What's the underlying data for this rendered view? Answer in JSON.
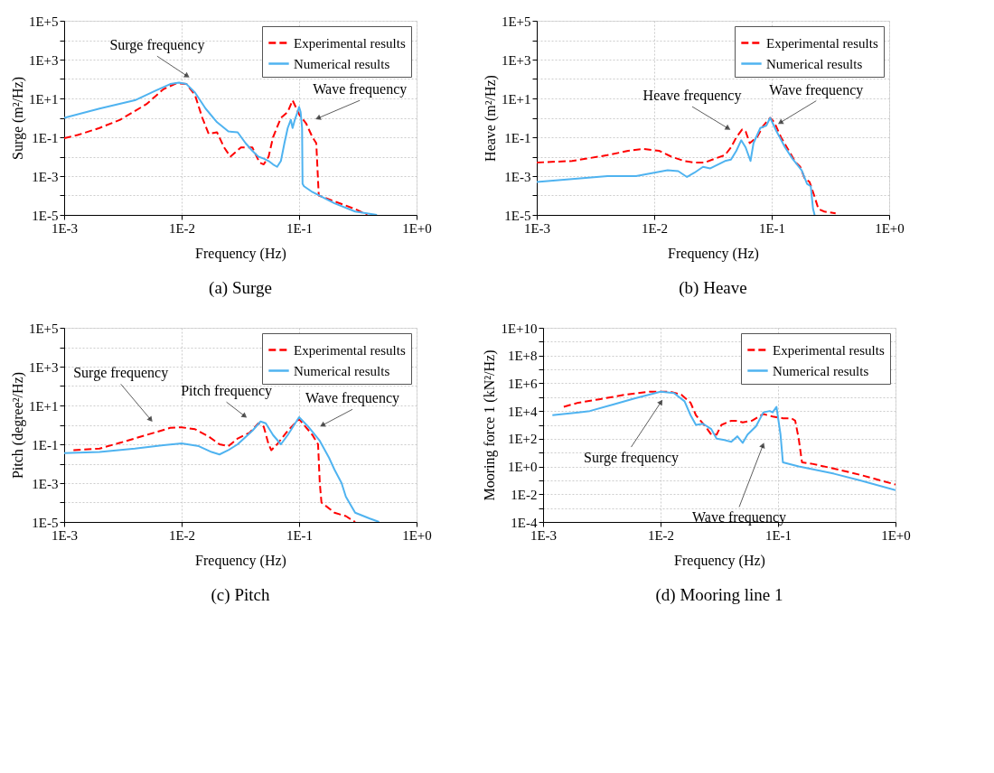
{
  "chart_data": [
    {
      "type": "line",
      "title": "(a) Surge",
      "xlabel": "Frequency (Hz)",
      "ylabel": "Surge (m²/Hz)",
      "log": "xy",
      "grid": true,
      "legend": "top right",
      "xlim": [
        0.001,
        1
      ],
      "ylim": [
        1e-05,
        100000
      ],
      "xticks": [
        {
          "value": 0.001,
          "label": "1E-3"
        },
        {
          "value": 0.01,
          "label": "1E-2"
        },
        {
          "value": 0.1,
          "label": "1E-1"
        },
        {
          "value": 1,
          "label": "1E+0"
        }
      ],
      "yticks": [
        {
          "value": 1e-05,
          "label": "1E-5"
        },
        {
          "value": 0.0001,
          "label": null
        },
        {
          "value": 0.001,
          "label": "1E-3"
        },
        {
          "value": 0.01,
          "label": null
        },
        {
          "value": 0.1,
          "label": "1E-1"
        },
        {
          "value": 1,
          "label": null
        },
        {
          "value": 10,
          "label": "1E+1"
        },
        {
          "value": 100,
          "label": null
        },
        {
          "value": 1000,
          "label": "1E+3"
        },
        {
          "value": 10000,
          "label": null
        },
        {
          "value": 100000,
          "label": "1E+5"
        }
      ],
      "series": [
        {
          "name": "Experimental results",
          "color": "#ff0000",
          "line_style": "dashed",
          "x": [
            0.001,
            0.0013,
            0.002,
            0.003,
            0.005,
            0.007,
            0.009,
            0.011,
            0.013,
            0.015,
            0.017,
            0.02,
            0.023,
            0.026,
            0.032,
            0.04,
            0.046,
            0.05,
            0.055,
            0.06,
            0.07,
            0.08,
            0.088,
            0.095,
            0.1,
            0.115,
            0.13,
            0.14,
            0.147,
            0.2,
            0.3,
            0.38
          ],
          "values": [
            0.09,
            0.13,
            0.3,
            0.8,
            5,
            30,
            60,
            55,
            15,
            1,
            0.15,
            0.18,
            0.03,
            0.01,
            0.03,
            0.03,
            0.005,
            0.004,
            0.01,
            0.1,
            1,
            2,
            8,
            3,
            1.5,
            0.5,
            0.1,
            0.05,
            0.0001,
            5e-05,
            2e-05,
            1e-05
          ]
        },
        {
          "name": "Numerical results",
          "color": "#4fb3f0",
          "line_style": "solid",
          "x": [
            0.001,
            0.002,
            0.004,
            0.006,
            0.008,
            0.0095,
            0.011,
            0.013,
            0.016,
            0.02,
            0.025,
            0.03,
            0.035,
            0.04,
            0.045,
            0.05,
            0.055,
            0.06,
            0.065,
            0.07,
            0.075,
            0.08,
            0.085,
            0.088,
            0.092,
            0.097,
            0.1,
            0.103,
            0.106,
            0.107,
            0.11,
            0.13,
            0.2,
            0.3,
            0.46
          ],
          "values": [
            1,
            3,
            8,
            25,
            55,
            65,
            55,
            20,
            3,
            0.6,
            0.2,
            0.18,
            0.05,
            0.02,
            0.01,
            0.008,
            0.006,
            0.004,
            0.003,
            0.006,
            0.05,
            0.3,
            0.8,
            0.3,
            0.8,
            2,
            3.6,
            2,
            0.3,
            0.0004,
            0.0003,
            0.00015,
            4e-05,
            1.5e-05,
            1e-05
          ]
        }
      ],
      "annotations": [
        {
          "text": "Surge frequency",
          "x": 0.011,
          "y": 150
        },
        {
          "text": "Wave frequency",
          "x": 0.147,
          "y": 1
        }
      ]
    },
    {
      "type": "line",
      "title": "(b) Heave",
      "xlabel": "Frequency (Hz)",
      "ylabel": "Heave (m²/Hz)",
      "log": "xy",
      "grid": true,
      "legend": "top right",
      "xlim": [
        0.001,
        1
      ],
      "ylim": [
        1e-05,
        100000
      ],
      "xticks": [
        {
          "value": 0.001,
          "label": "1E-3"
        },
        {
          "value": 0.01,
          "label": "1E-2"
        },
        {
          "value": 0.1,
          "label": "1E-1"
        },
        {
          "value": 1,
          "label": "1E+0"
        }
      ],
      "yticks": [
        {
          "value": 1e-05,
          "label": "1E-5"
        },
        {
          "value": 0.0001,
          "label": null
        },
        {
          "value": 0.001,
          "label": "1E-3"
        },
        {
          "value": 0.01,
          "label": null
        },
        {
          "value": 0.1,
          "label": "1E-1"
        },
        {
          "value": 1,
          "label": null
        },
        {
          "value": 10,
          "label": "1E+1"
        },
        {
          "value": 100,
          "label": null
        },
        {
          "value": 1000,
          "label": "1E+3"
        },
        {
          "value": 10000,
          "label": null
        },
        {
          "value": 100000,
          "label": "1E+5"
        }
      ],
      "series": [
        {
          "name": "Experimental results",
          "color": "#ff0000",
          "line_style": "dashed",
          "x": [
            0.001,
            0.002,
            0.004,
            0.006,
            0.008,
            0.011,
            0.014,
            0.018,
            0.022,
            0.027,
            0.033,
            0.04,
            0.045,
            0.05,
            0.056,
            0.06,
            0.065,
            0.075,
            0.085,
            0.097,
            0.105,
            0.12,
            0.14,
            0.16,
            0.175,
            0.19,
            0.21,
            0.23,
            0.25,
            0.28,
            0.35
          ],
          "values": [
            0.005,
            0.006,
            0.012,
            0.02,
            0.025,
            0.02,
            0.01,
            0.006,
            0.005,
            0.005,
            0.008,
            0.012,
            0.03,
            0.1,
            0.25,
            0.2,
            0.05,
            0.1,
            0.4,
            1,
            0.6,
            0.1,
            0.02,
            0.005,
            0.003,
            0.0008,
            0.0005,
            0.0001,
            2e-05,
            1.5e-05,
            1.2e-05
          ]
        },
        {
          "name": "Numerical results",
          "color": "#4fb3f0",
          "line_style": "solid",
          "x": [
            0.001,
            0.002,
            0.004,
            0.007,
            0.01,
            0.013,
            0.016,
            0.019,
            0.022,
            0.026,
            0.03,
            0.035,
            0.04,
            0.045,
            0.05,
            0.055,
            0.06,
            0.066,
            0.07,
            0.08,
            0.09,
            0.097,
            0.11,
            0.13,
            0.15,
            0.18,
            0.2,
            0.215,
            0.225,
            0.232
          ],
          "values": [
            0.0005,
            0.0007,
            0.001,
            0.001,
            0.0015,
            0.002,
            0.0018,
            0.0009,
            0.0015,
            0.003,
            0.0025,
            0.004,
            0.006,
            0.007,
            0.02,
            0.07,
            0.03,
            0.006,
            0.05,
            0.3,
            0.4,
            1,
            0.2,
            0.03,
            0.008,
            0.002,
            0.0004,
            0.0003,
            2e-05,
            1e-05
          ]
        }
      ],
      "annotations": [
        {
          "text": "Heave frequency",
          "x": 0.042,
          "y": 0.3
        },
        {
          "text": "Wave frequency",
          "x": 0.12,
          "y": 0.6
        }
      ]
    },
    {
      "type": "line",
      "title": "(c) Pitch",
      "xlabel": "Frequency (Hz)",
      "ylabel": "Pitch (degree²/Hz)",
      "log": "xy",
      "grid": true,
      "legend": "top right",
      "xlim": [
        0.001,
        1
      ],
      "ylim": [
        1e-05,
        100000
      ],
      "xticks": [
        {
          "value": 0.001,
          "label": "1E-3"
        },
        {
          "value": 0.01,
          "label": "1E-2"
        },
        {
          "value": 0.1,
          "label": "1E-1"
        },
        {
          "value": 1,
          "label": "1E+0"
        }
      ],
      "yticks": [
        {
          "value": 1e-05,
          "label": "1E-5"
        },
        {
          "value": 0.0001,
          "label": null
        },
        {
          "value": 0.001,
          "label": "1E-3"
        },
        {
          "value": 0.01,
          "label": null
        },
        {
          "value": 0.1,
          "label": "1E-1"
        },
        {
          "value": 1,
          "label": null
        },
        {
          "value": 10,
          "label": "1E+1"
        },
        {
          "value": 100,
          "label": null
        },
        {
          "value": 1000,
          "label": "1E+3"
        },
        {
          "value": 10000,
          "label": null
        },
        {
          "value": 100000,
          "label": "1E+5"
        }
      ],
      "series": [
        {
          "name": "Experimental results",
          "color": "#ff0000",
          "line_style": "dashed",
          "x": [
            0.0012,
            0.002,
            0.003,
            0.005,
            0.008,
            0.01,
            0.013,
            0.017,
            0.021,
            0.025,
            0.03,
            0.038,
            0.045,
            0.05,
            0.055,
            0.058,
            0.065,
            0.08,
            0.1,
            0.11,
            0.13,
            0.145,
            0.15,
            0.155,
            0.2,
            0.25,
            0.3
          ],
          "values": [
            0.05,
            0.06,
            0.12,
            0.3,
            0.7,
            0.75,
            0.6,
            0.25,
            0.1,
            0.08,
            0.2,
            0.4,
            1.2,
            0.8,
            0.1,
            0.05,
            0.1,
            0.5,
            2,
            1,
            0.3,
            0.1,
            0.001,
            0.0001,
            3e-05,
            2e-05,
            1e-05
          ]
        },
        {
          "name": "Numerical results",
          "color": "#4fb3f0",
          "line_style": "solid",
          "x": [
            0.001,
            0.002,
            0.004,
            0.007,
            0.01,
            0.014,
            0.018,
            0.021,
            0.025,
            0.03,
            0.04,
            0.047,
            0.052,
            0.06,
            0.07,
            0.08,
            0.1,
            0.12,
            0.15,
            0.18,
            0.2,
            0.23,
            0.25,
            0.3,
            0.4,
            0.48
          ],
          "values": [
            0.035,
            0.04,
            0.06,
            0.09,
            0.11,
            0.08,
            0.04,
            0.03,
            0.05,
            0.1,
            0.5,
            1.5,
            1.2,
            0.3,
            0.1,
            0.3,
            2.5,
            0.8,
            0.15,
            0.02,
            0.005,
            0.001,
            0.0002,
            3e-05,
            1.5e-05,
            1e-05
          ]
        }
      ],
      "annotations": [
        {
          "text": "Surge frequency",
          "x": 0.0054,
          "y": 2
        },
        {
          "text": "Pitch frequency",
          "x": 0.034,
          "y": 3
        },
        {
          "text": "Wave frequency",
          "x": 0.16,
          "y": 1
        }
      ]
    },
    {
      "type": "line",
      "title": "(d) Mooring line 1",
      "xlabel": "Frequency (Hz)",
      "ylabel": "Mooring force 1 (kN²/Hz)",
      "log": "xy",
      "grid": true,
      "legend": "top right",
      "xlim": [
        0.001,
        1
      ],
      "ylim": [
        0.0001,
        10000000000
      ],
      "xticks": [
        {
          "value": 0.001,
          "label": "1E-3"
        },
        {
          "value": 0.01,
          "label": "1E-2"
        },
        {
          "value": 0.1,
          "label": "1E-1"
        },
        {
          "value": 1,
          "label": "1E+0"
        }
      ],
      "yticks": [
        {
          "value": 0.0001,
          "label": "1E-4"
        },
        {
          "value": 0.001,
          "label": null
        },
        {
          "value": 0.01,
          "label": "1E-2"
        },
        {
          "value": 0.1,
          "label": null
        },
        {
          "value": 1,
          "label": "1E+0"
        },
        {
          "value": 10,
          "label": null
        },
        {
          "value": 100,
          "label": "1E+2"
        },
        {
          "value": 1000,
          "label": null
        },
        {
          "value": 10000,
          "label": "1E+4"
        },
        {
          "value": 100000,
          "label": null
        },
        {
          "value": 1000000,
          "label": "1E+6"
        },
        {
          "value": 10000000,
          "label": null
        },
        {
          "value": 100000000,
          "label": "1E+8"
        },
        {
          "value": 1000000000,
          "label": null
        },
        {
          "value": 10000000000,
          "label": "1E+10"
        }
      ],
      "series": [
        {
          "name": "Experimental results",
          "color": "#ff0000",
          "line_style": "dashed",
          "x": [
            0.0015,
            0.002,
            0.003,
            0.005,
            0.008,
            0.012,
            0.015,
            0.018,
            0.02,
            0.024,
            0.027,
            0.03,
            0.033,
            0.04,
            0.045,
            0.05,
            0.06,
            0.075,
            0.09,
            0.11,
            0.13,
            0.14,
            0.15,
            0.16,
            0.2,
            0.3,
            0.5,
            1
          ],
          "values": [
            20000,
            40000,
            70000,
            150000,
            250000,
            250000,
            150000,
            40000,
            5000,
            800,
            200,
            200,
            1000,
            2000,
            2000,
            1500,
            2000,
            6000,
            4000,
            3000,
            3000,
            2000,
            100,
            2,
            1.5,
            0.7,
            0.25,
            0.05
          ]
        },
        {
          "name": "Numerical results",
          "color": "#4fb3f0",
          "line_style": "solid",
          "x": [
            0.0012,
            0.002,
            0.0025,
            0.004,
            0.006,
            0.01,
            0.013,
            0.016,
            0.018,
            0.02,
            0.023,
            0.027,
            0.03,
            0.035,
            0.04,
            0.045,
            0.05,
            0.055,
            0.065,
            0.075,
            0.085,
            0.09,
            0.097,
            0.105,
            0.11,
            0.15,
            0.3,
            0.5,
            1
          ],
          "values": [
            5000,
            8000,
            10000,
            30000,
            80000,
            250000,
            200000,
            50000,
            5000,
            1000,
            1200,
            500,
            100,
            80,
            60,
            150,
            50,
            200,
            800,
            8000,
            10000,
            8000,
            20000,
            200,
            2,
            1,
            0.3,
            0.1,
            0.02
          ]
        }
      ],
      "annotations": [
        {
          "text": "Surge frequency",
          "x": 0.01,
          "y": 40000
        },
        {
          "text": "Wave frequency",
          "x": 0.074,
          "y": 30
        }
      ]
    }
  ]
}
